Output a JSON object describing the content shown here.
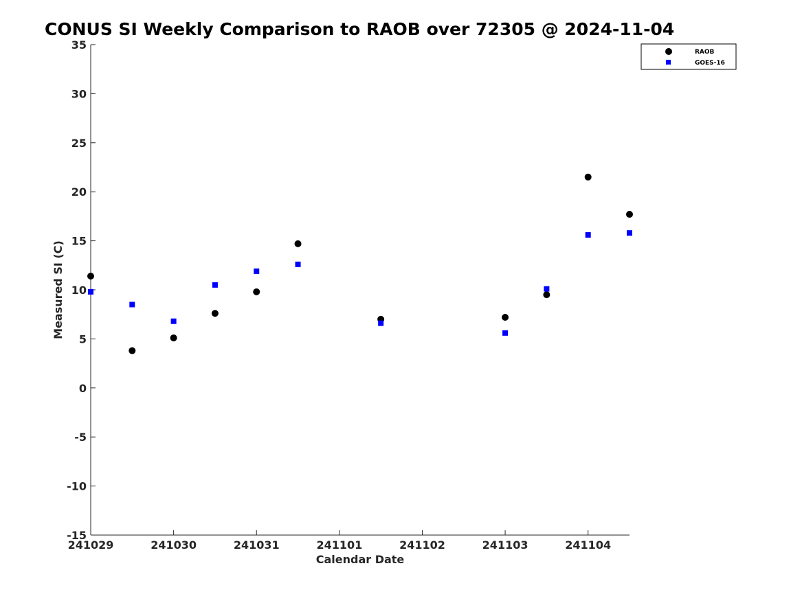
{
  "chart_data": {
    "type": "scatter",
    "title": "CONUS SI Weekly Comparison to RAOB over 72305 @ 2024-11-04",
    "xlabel": "Calendar Date",
    "ylabel": "Measured SI (C)",
    "x_ticks": [
      "241029",
      "241030",
      "241031",
      "241101",
      "241102",
      "241103",
      "241104"
    ],
    "x_unit": "day",
    "xlim": [
      0,
      6.5
    ],
    "ylim": [
      -15,
      35
    ],
    "y_ticks": [
      -15,
      -10,
      -5,
      0,
      5,
      10,
      15,
      20,
      25,
      30,
      35
    ],
    "grid": false,
    "legend_position": "top-right",
    "series": [
      {
        "name": "RAOB",
        "marker": "circle",
        "color": "#000000",
        "x": [
          0,
          0.5,
          1,
          1.5,
          2,
          2.5,
          3.5,
          5,
          5.5,
          6,
          6.5
        ],
        "y": [
          11.4,
          3.8,
          5.1,
          7.6,
          9.8,
          14.7,
          7.0,
          7.2,
          9.5,
          21.5,
          17.7
        ]
      },
      {
        "name": "GOES-16",
        "marker": "square",
        "color": "#0000ff",
        "x": [
          0,
          0.5,
          1,
          1.5,
          2,
          2.5,
          3.5,
          5,
          5.5,
          6,
          6.5
        ],
        "y": [
          9.8,
          8.5,
          6.8,
          10.5,
          11.9,
          12.6,
          6.6,
          5.6,
          10.1,
          15.6,
          15.8
        ]
      }
    ]
  }
}
